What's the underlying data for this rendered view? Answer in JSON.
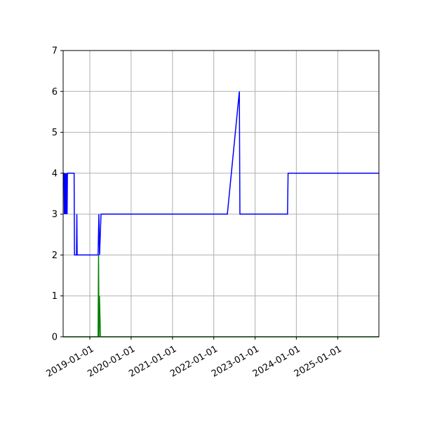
{
  "chart_data": {
    "type": "line",
    "title": "",
    "xlabel": "",
    "ylabel": "",
    "x_axis_type": "date",
    "xlim": [
      "2018-05-10",
      "2025-12-31"
    ],
    "ylim": [
      0,
      7
    ],
    "grid": true,
    "legend": "none",
    "x_ticks": [
      "2019-01-01",
      "2020-01-01",
      "2021-01-01",
      "2022-01-01",
      "2023-01-01",
      "2024-01-01",
      "2025-01-01"
    ],
    "y_ticks": [
      0,
      1,
      2,
      3,
      4,
      5,
      6,
      7
    ],
    "series": [
      {
        "color": "#0000ff",
        "points": [
          [
            "2018-05-10",
            4
          ],
          [
            "2018-05-17",
            4
          ],
          [
            "2018-05-20",
            3
          ],
          [
            "2018-05-24",
            4
          ],
          [
            "2018-05-26",
            3
          ],
          [
            "2018-05-29",
            4
          ],
          [
            "2018-06-01",
            3
          ],
          [
            "2018-06-04",
            4
          ],
          [
            "2018-06-07",
            3
          ],
          [
            "2018-06-10",
            4
          ],
          [
            "2018-06-14",
            3
          ],
          [
            "2018-06-17",
            4
          ],
          [
            "2018-08-15",
            4
          ],
          [
            "2018-08-18",
            2
          ],
          [
            "2018-09-05",
            2
          ],
          [
            "2018-09-08",
            3
          ],
          [
            "2018-09-11",
            2
          ],
          [
            "2019-03-15",
            2
          ],
          [
            "2019-03-22",
            3
          ],
          [
            "2019-03-28",
            2
          ],
          [
            "2019-04-10",
            3
          ],
          [
            "2022-05-01",
            3
          ],
          [
            "2022-08-15",
            6
          ],
          [
            "2022-08-20",
            3
          ],
          [
            "2023-10-15",
            3
          ],
          [
            "2023-10-20",
            4
          ],
          [
            "2025-12-31",
            4
          ]
        ]
      },
      {
        "color": "#008000",
        "points": [
          [
            "2018-05-10",
            0
          ],
          [
            "2019-03-15",
            0
          ],
          [
            "2019-03-19",
            2
          ],
          [
            "2019-03-23",
            0
          ],
          [
            "2019-03-27",
            1
          ],
          [
            "2019-04-05",
            0
          ],
          [
            "2025-12-31",
            0
          ]
        ]
      }
    ]
  }
}
